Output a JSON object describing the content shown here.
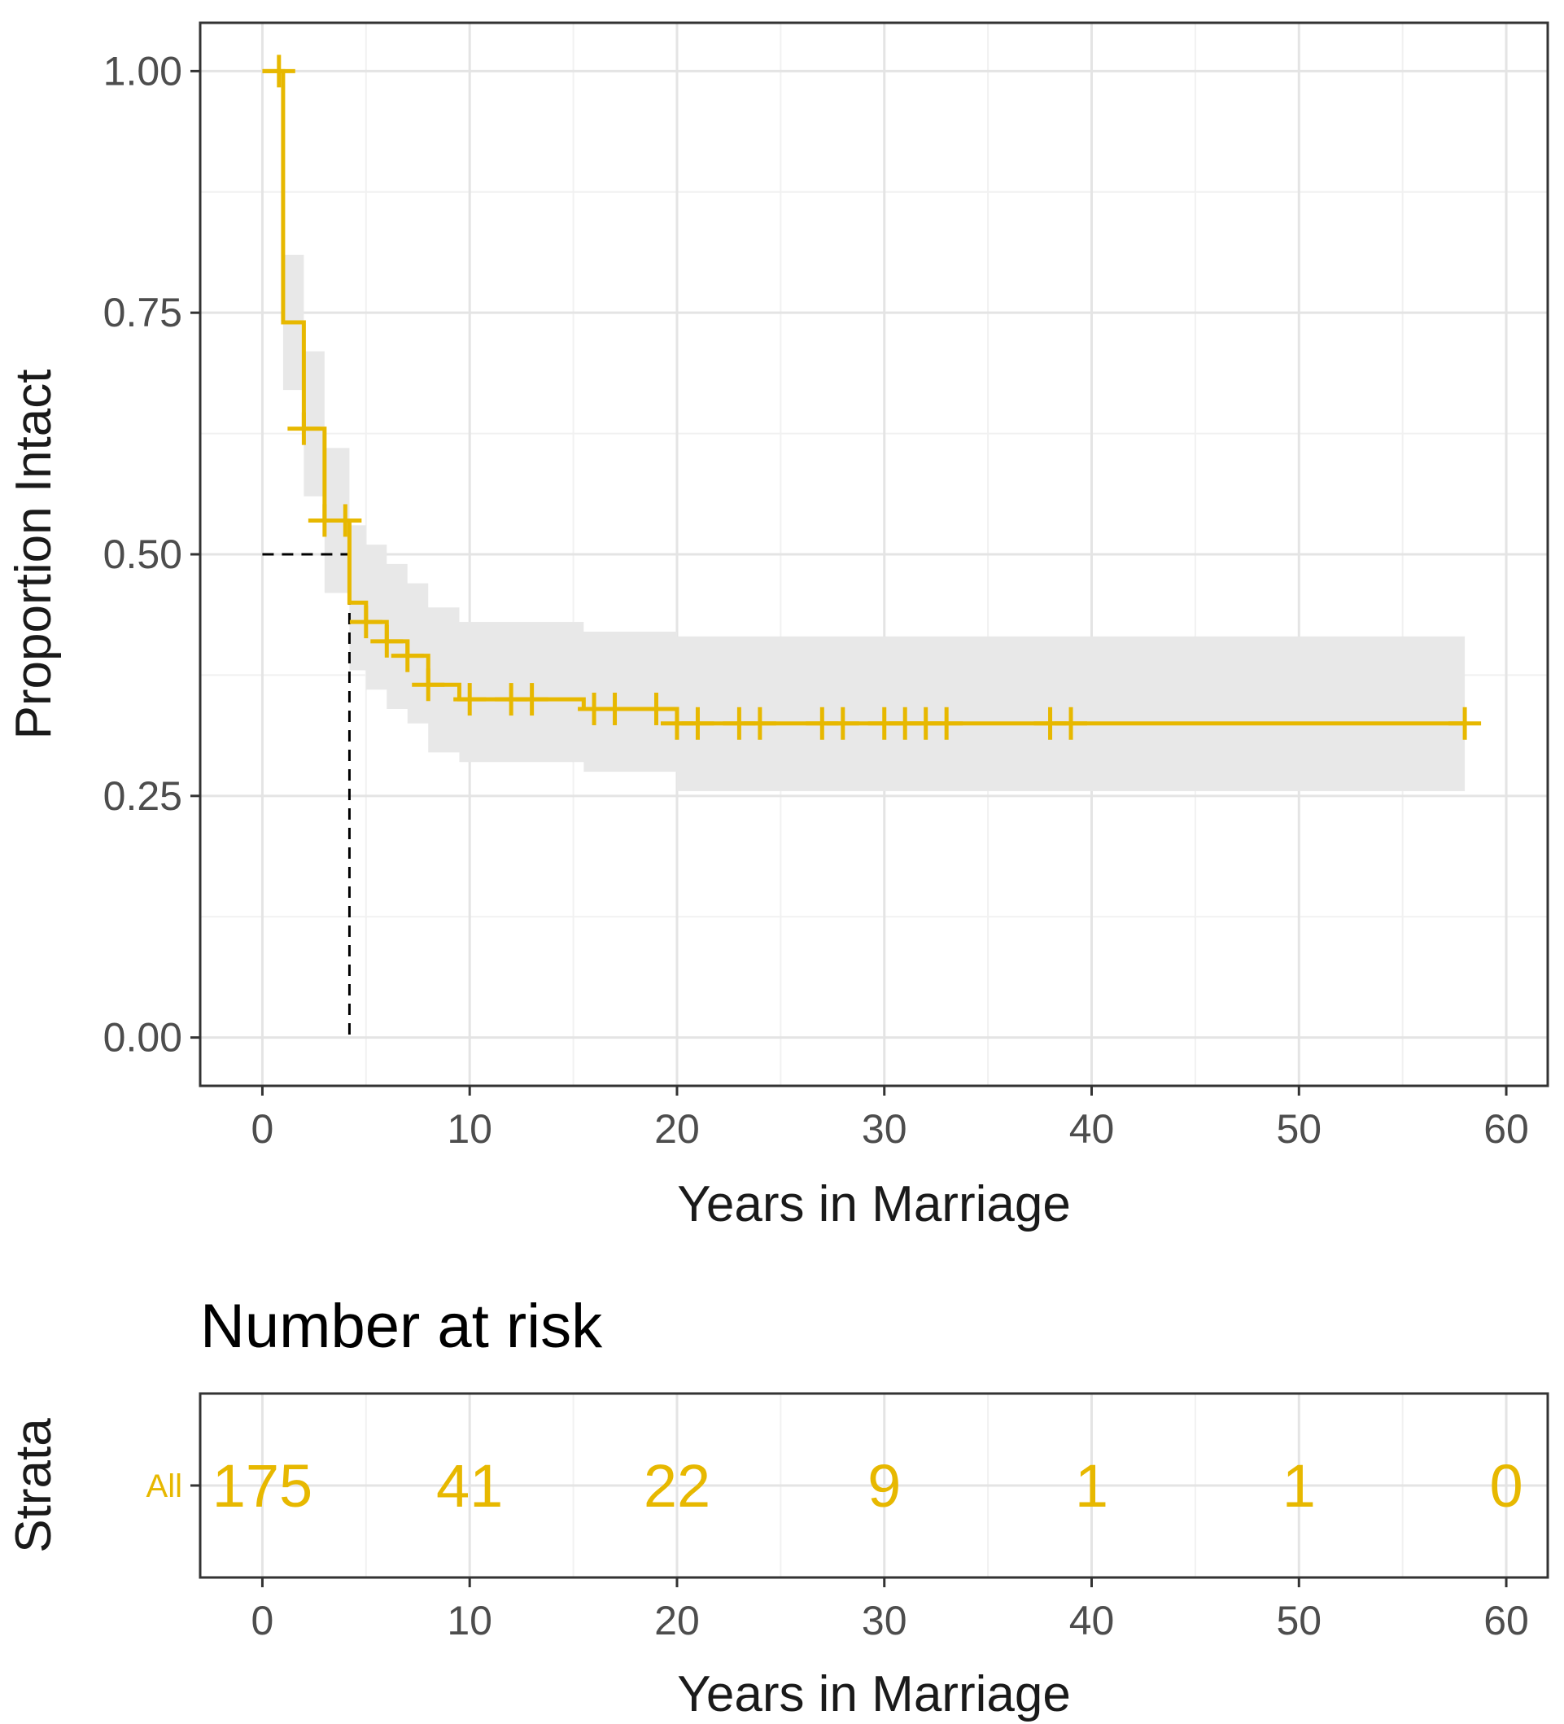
{
  "colors": {
    "curve": "#E7B800",
    "ci_band": "#e8e8e8",
    "grid_major": "#e4e4e4",
    "grid_minor": "#f1f1f1",
    "panel_border": "#333333",
    "median_line": "#000000"
  },
  "chart_data": [
    {
      "type": "line",
      "subtype": "kaplan-meier",
      "title": "",
      "xlabel": "Years in Marriage",
      "ylabel": "Proportion Intact",
      "xlim": [
        -3,
        62
      ],
      "ylim": [
        -0.05,
        1.05
      ],
      "x_ticks": [
        0,
        10,
        20,
        30,
        40,
        50,
        60
      ],
      "y_ticks": [
        0.0,
        0.25,
        0.5,
        0.75,
        1.0
      ],
      "y_tick_labels": [
        "0.00",
        "0.25",
        "0.50",
        "0.75",
        "1.00"
      ],
      "grid": true,
      "series": [
        {
          "name": "All",
          "steps": [
            {
              "x": 0,
              "y": 1.0
            },
            {
              "x": 1,
              "y": 0.74
            },
            {
              "x": 2,
              "y": 0.63
            },
            {
              "x": 3,
              "y": 0.535
            },
            {
              "x": 4.2,
              "y": 0.45
            },
            {
              "x": 5,
              "y": 0.43
            },
            {
              "x": 6,
              "y": 0.41
            },
            {
              "x": 7,
              "y": 0.395
            },
            {
              "x": 8,
              "y": 0.365
            },
            {
              "x": 9.5,
              "y": 0.35
            },
            {
              "x": 15.5,
              "y": 0.34
            },
            {
              "x": 20,
              "y": 0.325
            },
            {
              "x": 58,
              "y": 0.325
            }
          ],
          "ci": [
            {
              "x": 0,
              "lower": 1.0,
              "upper": 1.0
            },
            {
              "x": 1,
              "lower": 0.67,
              "upper": 0.81
            },
            {
              "x": 2,
              "lower": 0.56,
              "upper": 0.71
            },
            {
              "x": 3,
              "lower": 0.46,
              "upper": 0.61
            },
            {
              "x": 4.2,
              "lower": 0.38,
              "upper": 0.53
            },
            {
              "x": 5,
              "lower": 0.36,
              "upper": 0.51
            },
            {
              "x": 6,
              "lower": 0.34,
              "upper": 0.49
            },
            {
              "x": 7,
              "lower": 0.325,
              "upper": 0.47
            },
            {
              "x": 8,
              "lower": 0.295,
              "upper": 0.445
            },
            {
              "x": 9.5,
              "lower": 0.285,
              "upper": 0.43
            },
            {
              "x": 15.5,
              "lower": 0.275,
              "upper": 0.42
            },
            {
              "x": 20,
              "lower": 0.255,
              "upper": 0.415
            },
            {
              "x": 58,
              "lower": 0.255,
              "upper": 0.415
            }
          ],
          "censor_x": [
            0.8,
            2,
            3,
            4,
            5,
            6,
            7,
            8,
            10,
            12,
            13,
            16,
            17,
            19,
            20,
            21,
            23,
            24,
            27,
            28,
            30,
            31,
            32,
            33,
            38,
            39,
            58
          ]
        }
      ],
      "median": {
        "x": 4.2,
        "y": 0.5
      }
    },
    {
      "type": "table",
      "title": "Number at risk",
      "xlabel": "Years in Marriage",
      "ylabel": "Strata",
      "xlim": [
        -3,
        62
      ],
      "x_ticks": [
        0,
        10,
        20,
        30,
        40,
        50,
        60
      ],
      "strata": [
        "All"
      ],
      "times": [
        0,
        10,
        20,
        30,
        40,
        50,
        60
      ],
      "at_risk": [
        "175",
        "41",
        "22",
        "9",
        "1",
        "1",
        "0"
      ]
    }
  ]
}
